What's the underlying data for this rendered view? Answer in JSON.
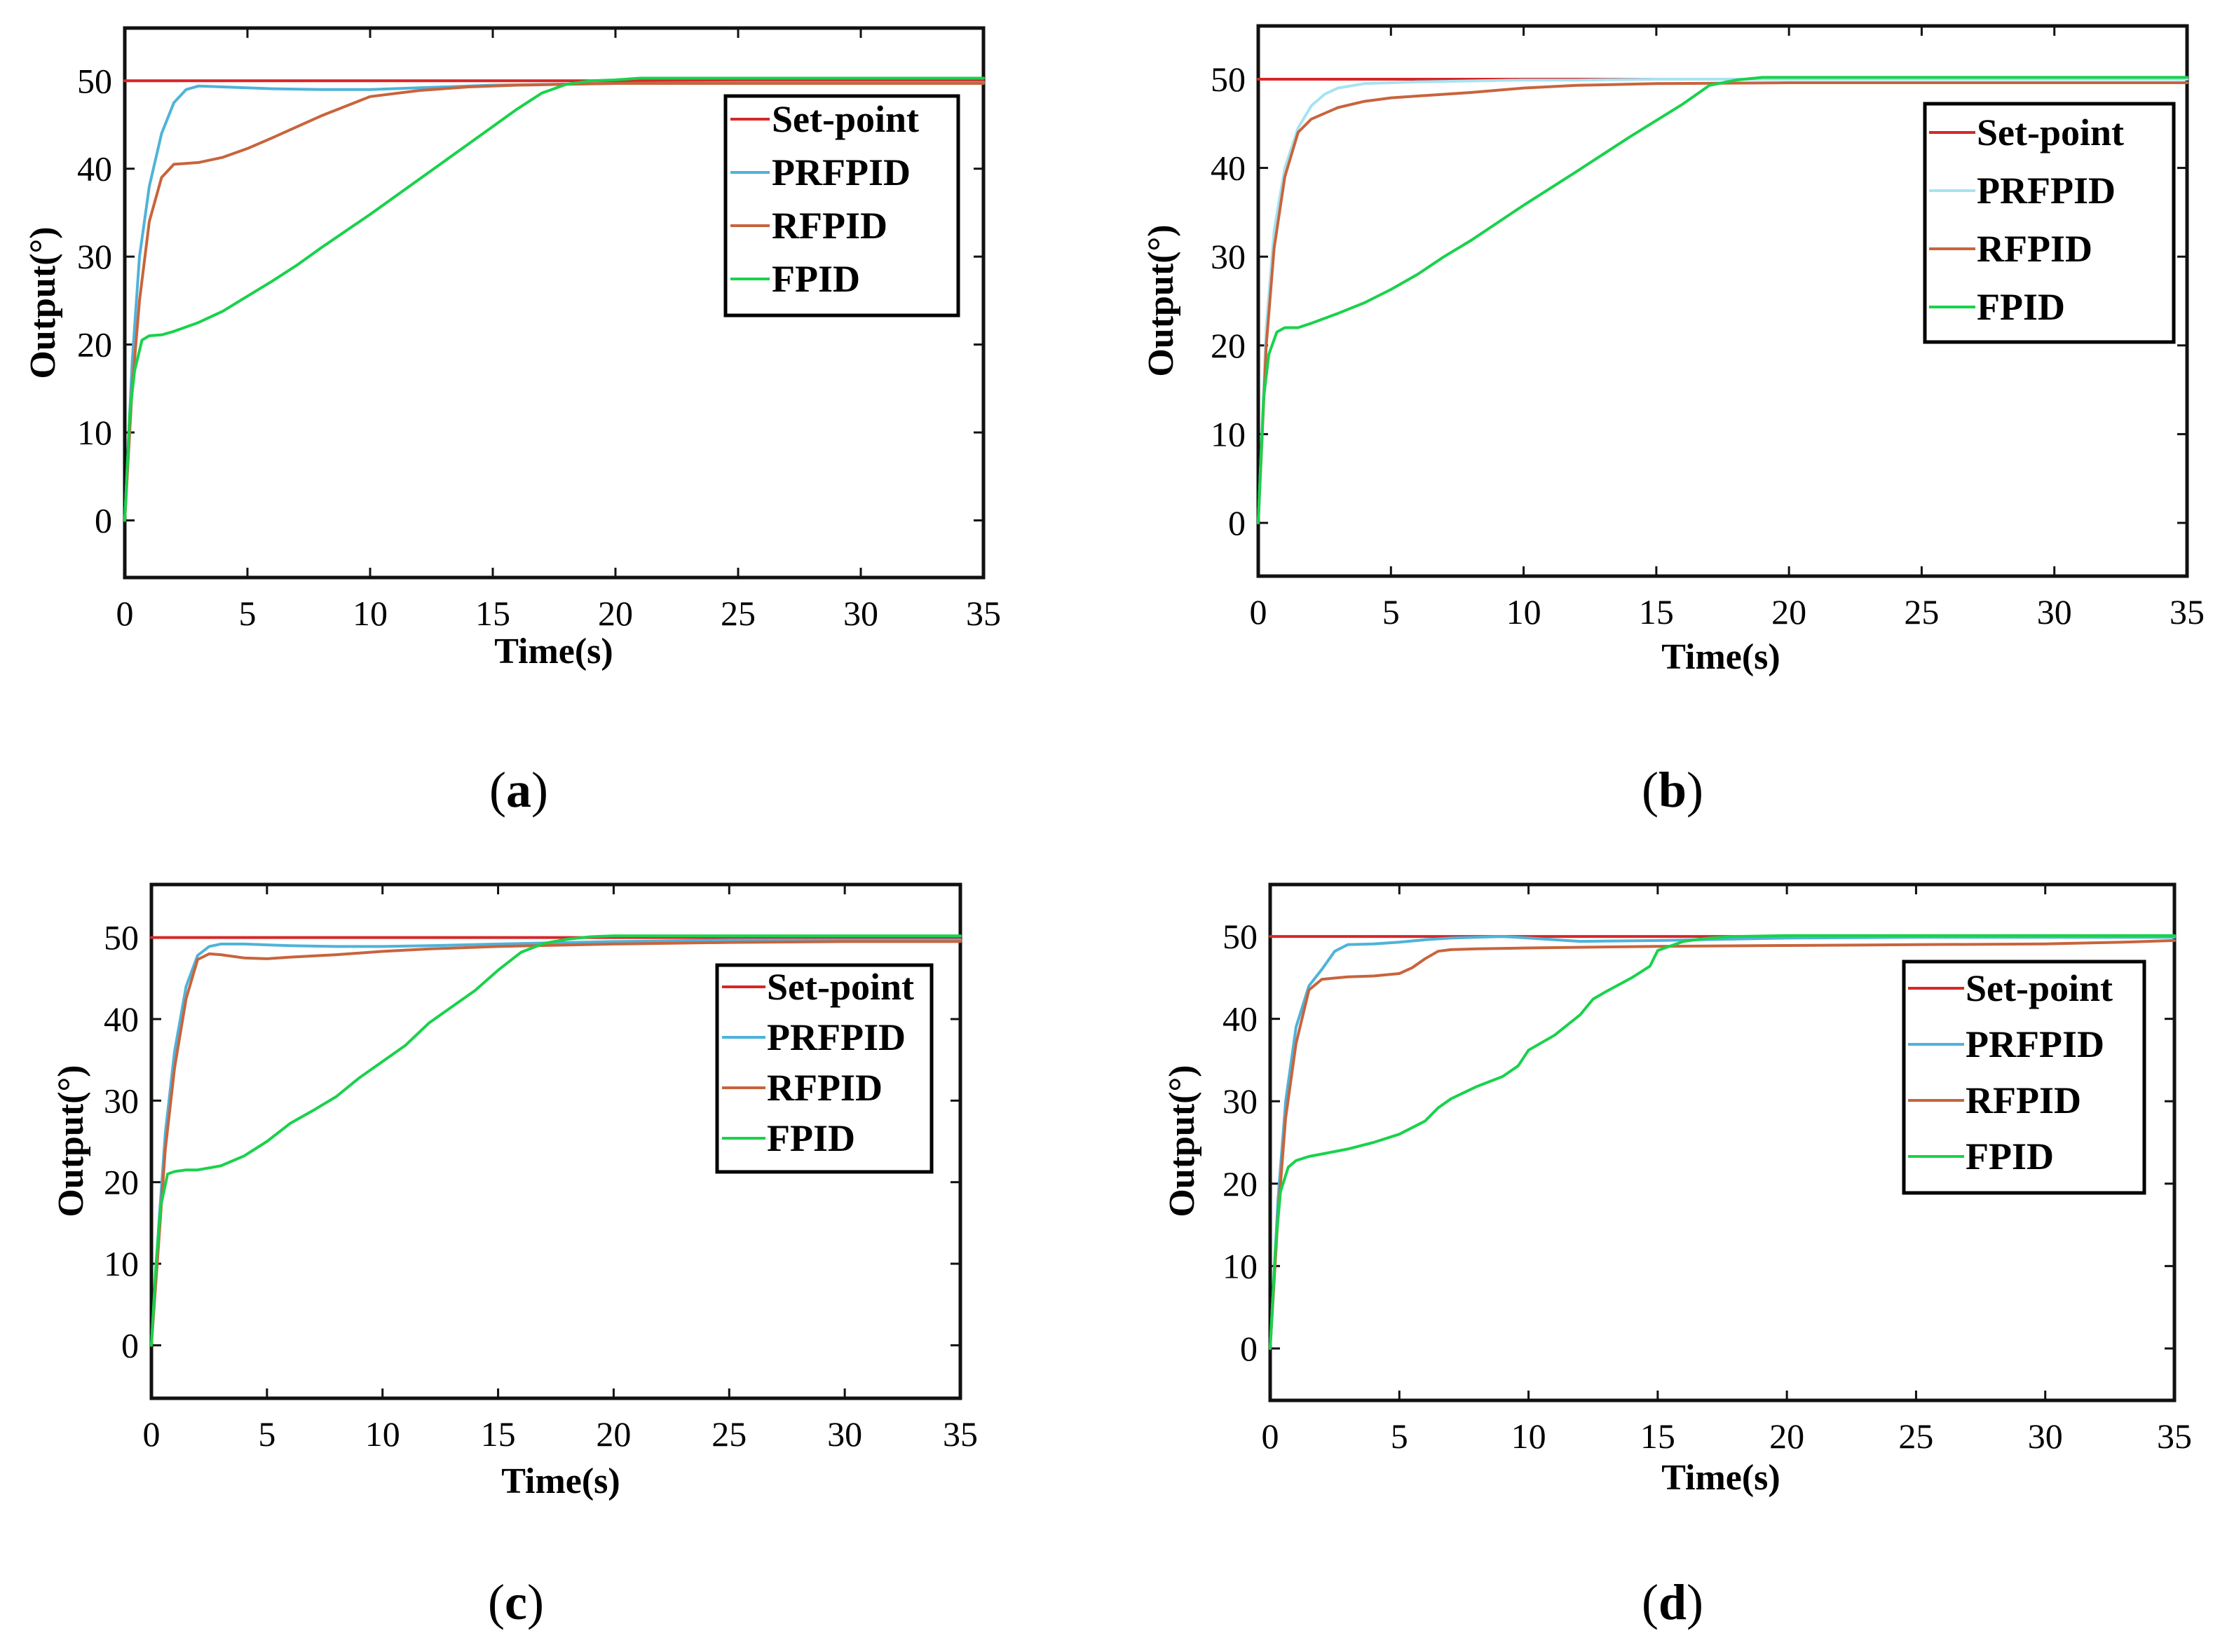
{
  "colors": {
    "set_point": "#d62728",
    "prfpid": "#4fb3d9",
    "prfpid_light": "#a6e3f2",
    "rfpid": "#c8643c",
    "fpid": "#19d24b"
  },
  "chart_data": [
    {
      "type": "line",
      "caption_letter": "a",
      "xlabel": "Time(s)",
      "ylabel": "Output(°)",
      "xlim": [
        0,
        35
      ],
      "ylim": [
        -6.5,
        56
      ],
      "xticks": [
        0,
        5,
        10,
        15,
        20,
        25,
        30,
        35
      ],
      "yticks": [
        0,
        10,
        20,
        30,
        40,
        50
      ],
      "legend_position": "top-right",
      "series": [
        {
          "name": "Set-point",
          "color": "#d62728",
          "x": [
            0,
            35
          ],
          "y": [
            50,
            50
          ]
        },
        {
          "name": "PRFPID",
          "color": "#4fb3d9",
          "x": [
            0,
            0.3,
            0.6,
            1,
            1.5,
            2,
            2.5,
            3,
            4,
            6,
            8,
            10,
            12,
            15,
            20,
            25,
            30,
            35
          ],
          "y": [
            0,
            18,
            30,
            38,
            44,
            47.5,
            49,
            49.4,
            49.3,
            49.1,
            49,
            49,
            49.2,
            49.5,
            49.7,
            49.8,
            49.8,
            49.8
          ]
        },
        {
          "name": "RFPID",
          "color": "#c8643c",
          "x": [
            0,
            0.3,
            0.6,
            1,
            1.5,
            2,
            3,
            4,
            5,
            6,
            8,
            10,
            12,
            14,
            16,
            18,
            20,
            25,
            30,
            35
          ],
          "y": [
            0,
            15,
            25,
            34,
            39,
            40.5,
            40.7,
            41.3,
            42.3,
            43.5,
            46,
            48.2,
            48.9,
            49.3,
            49.5,
            49.6,
            49.7,
            49.7,
            49.7,
            49.7
          ]
        },
        {
          "name": "FPID",
          "color": "#19d24b",
          "x": [
            0,
            0.2,
            0.4,
            0.7,
            1,
            1.5,
            2,
            3,
            4,
            5,
            6,
            7,
            8,
            10,
            12,
            14,
            16,
            17,
            18,
            19,
            20,
            21,
            25,
            30,
            35
          ],
          "y": [
            0,
            12,
            17,
            20.5,
            21,
            21.1,
            21.5,
            22.5,
            23.8,
            25.5,
            27.2,
            29,
            31,
            34.8,
            38.8,
            42.8,
            46.8,
            48.6,
            49.6,
            50,
            50.1,
            50.3,
            50.3,
            50.3,
            50.3
          ]
        }
      ]
    },
    {
      "type": "line",
      "caption_letter": "b",
      "xlabel": "Time(s)",
      "ylabel": "Output(°)",
      "xlim": [
        0,
        35
      ],
      "ylim": [
        -6,
        56
      ],
      "xticks": [
        0,
        5,
        10,
        15,
        20,
        25,
        30,
        35
      ],
      "yticks": [
        0,
        10,
        20,
        30,
        40,
        50
      ],
      "legend_position": "top-right",
      "series": [
        {
          "name": "Set-point",
          "color": "#d62728",
          "x": [
            0,
            35
          ],
          "y": [
            50,
            50
          ]
        },
        {
          "name": "PRFPID",
          "color": "#a6e3f2",
          "x": [
            0,
            0.3,
            0.6,
            1,
            1.5,
            2,
            2.5,
            3,
            4,
            6,
            8,
            10,
            12,
            15,
            20,
            25,
            30,
            35
          ],
          "y": [
            0,
            22,
            33,
            40,
            44.5,
            47,
            48.3,
            49,
            49.5,
            49.7,
            49.8,
            49.9,
            49.9,
            50,
            50,
            50,
            50,
            50
          ]
        },
        {
          "name": "RFPID",
          "color": "#c8643c",
          "x": [
            0,
            0.3,
            0.6,
            1,
            1.5,
            2,
            3,
            4,
            5,
            6,
            8,
            10,
            12,
            15,
            20,
            25,
            30,
            35
          ],
          "y": [
            0,
            20,
            31,
            39,
            44,
            45.5,
            46.8,
            47.5,
            47.9,
            48.1,
            48.5,
            49,
            49.3,
            49.5,
            49.6,
            49.6,
            49.6,
            49.6
          ]
        },
        {
          "name": "FPID",
          "color": "#19d24b",
          "x": [
            0,
            0.2,
            0.4,
            0.7,
            1,
            1.5,
            2,
            3,
            4,
            5,
            6,
            7,
            8,
            10,
            12,
            14,
            16,
            17,
            18,
            19,
            20,
            25,
            30,
            35
          ],
          "y": [
            0,
            14,
            19,
            21.5,
            22,
            22,
            22.5,
            23.6,
            24.8,
            26.3,
            28,
            30,
            31.8,
            35.8,
            39.6,
            43.5,
            47.2,
            49.3,
            49.9,
            50.2,
            50.2,
            50.2,
            50.2,
            50.2
          ]
        }
      ]
    },
    {
      "type": "line",
      "caption_letter": "c",
      "xlabel": "Time(s)",
      "ylabel": "Output(°)",
      "xlim": [
        0,
        35
      ],
      "ylim": [
        -6.5,
        56.5
      ],
      "xticks": [
        0,
        5,
        10,
        15,
        20,
        25,
        30,
        35
      ],
      "yticks": [
        0,
        10,
        20,
        30,
        40,
        50
      ],
      "legend_position": "right",
      "series": [
        {
          "name": "Set-point",
          "color": "#d62728",
          "x": [
            0,
            35
          ],
          "y": [
            50,
            50
          ]
        },
        {
          "name": "PRFPID",
          "color": "#4fb3d9",
          "x": [
            0,
            0.3,
            0.6,
            1,
            1.5,
            2,
            2.5,
            3,
            4,
            6,
            8,
            10,
            12,
            15,
            20,
            25,
            30,
            35
          ],
          "y": [
            0,
            14,
            26,
            36,
            44,
            47.8,
            48.9,
            49.2,
            49.2,
            49,
            48.9,
            48.9,
            49,
            49.2,
            49.5,
            49.7,
            49.7,
            49.7
          ]
        },
        {
          "name": "RFPID",
          "color": "#c8643c",
          "x": [
            0,
            0.3,
            0.6,
            1,
            1.5,
            2,
            2.5,
            3,
            4,
            5,
            6,
            8,
            10,
            12,
            15,
            20,
            25,
            30,
            35
          ],
          "y": [
            0,
            12,
            24,
            34,
            42.5,
            47.3,
            48,
            47.9,
            47.5,
            47.4,
            47.6,
            47.9,
            48.3,
            48.6,
            48.9,
            49.2,
            49.4,
            49.5,
            49.5
          ]
        },
        {
          "name": "FPID",
          "color": "#19d24b",
          "x": [
            0,
            0.2,
            0.4,
            0.7,
            1,
            1.5,
            2,
            3,
            4,
            5,
            6,
            7,
            8,
            9,
            10,
            11,
            12,
            13,
            14,
            15,
            16,
            17,
            18,
            19,
            20,
            25,
            30,
            35
          ],
          "y": [
            0,
            10,
            17,
            21,
            21.3,
            21.5,
            21.5,
            22,
            23.2,
            25,
            27.2,
            28.8,
            30.5,
            32.8,
            34.8,
            36.8,
            39.5,
            41.5,
            43.5,
            46,
            48.2,
            49.3,
            49.8,
            50.1,
            50.2,
            50.2,
            50.2,
            50.2
          ]
        }
      ]
    },
    {
      "type": "line",
      "caption_letter": "d",
      "xlabel": "Time(s)",
      "ylabel": "Output(°)",
      "xlim": [
        0,
        35
      ],
      "ylim": [
        -6.3,
        56.3
      ],
      "xticks": [
        0,
        5,
        10,
        15,
        20,
        25,
        30,
        35
      ],
      "yticks": [
        0,
        10,
        20,
        30,
        40,
        50
      ],
      "legend_position": "right",
      "series": [
        {
          "name": "Set-point",
          "color": "#d62728",
          "x": [
            0,
            35
          ],
          "y": [
            50,
            50
          ]
        },
        {
          "name": "PRFPID",
          "color": "#4fb3d9",
          "x": [
            0,
            0.3,
            0.6,
            1,
            1.5,
            2,
            2.5,
            3,
            4,
            5,
            6,
            7,
            8,
            9,
            10,
            12,
            15,
            20,
            25,
            30,
            35
          ],
          "y": [
            0,
            18,
            30,
            39,
            44,
            46,
            48.2,
            49,
            49.1,
            49.3,
            49.6,
            49.8,
            49.9,
            50,
            49.8,
            49.4,
            49.5,
            49.8,
            49.9,
            49.9,
            49.9
          ]
        },
        {
          "name": "RFPID",
          "color": "#c8643c",
          "x": [
            0,
            0.3,
            0.6,
            1,
            1.5,
            2,
            3,
            4,
            5,
            5.5,
            6,
            6.5,
            7,
            8,
            10,
            15,
            20,
            25,
            30,
            33,
            35
          ],
          "y": [
            0,
            16,
            28,
            37,
            43.5,
            44.8,
            45.1,
            45.2,
            45.5,
            46.2,
            47.3,
            48.2,
            48.4,
            48.5,
            48.6,
            48.8,
            48.9,
            49,
            49.1,
            49.3,
            49.5
          ]
        },
        {
          "name": "FPID",
          "color": "#19d24b",
          "x": [
            0,
            0.2,
            0.4,
            0.7,
            1,
            1.5,
            2,
            3,
            4,
            5,
            6,
            6.5,
            7,
            8,
            9,
            9.6,
            10,
            11,
            12,
            12.5,
            13,
            14,
            14.7,
            15,
            16,
            17,
            18,
            20,
            25,
            30,
            35
          ],
          "y": [
            0,
            12,
            19,
            22,
            22.8,
            23.3,
            23.6,
            24.2,
            25,
            26,
            27.6,
            29.2,
            30.3,
            31.8,
            33,
            34.3,
            36.2,
            38,
            40.5,
            42.4,
            43.3,
            45,
            46.4,
            48.3,
            49.4,
            49.8,
            50,
            50.1,
            50.1,
            50.1,
            50.1
          ]
        }
      ]
    }
  ]
}
